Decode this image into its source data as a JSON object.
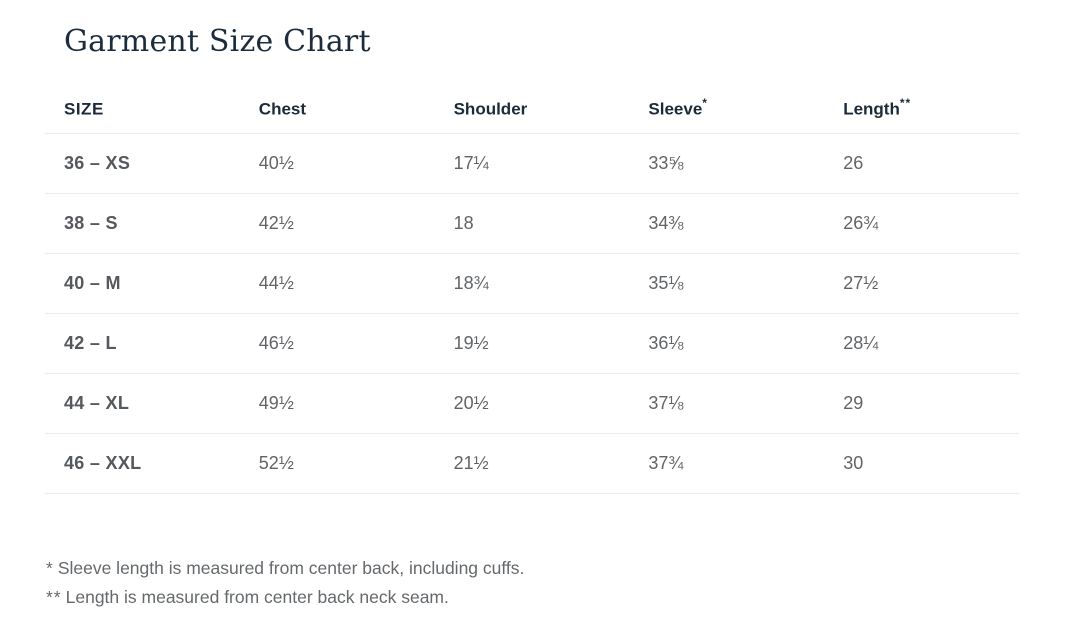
{
  "page": {
    "title": "Garment Size Chart",
    "background": "#ffffff"
  },
  "colors": {
    "title_text": "#1d2c3c",
    "header_text": "#1c2a39",
    "size_cell_text": "#55585c",
    "data_cell_text": "#616467",
    "footnote_text": "#66696c",
    "divider": "#ececec"
  },
  "size_chart": {
    "columns": [
      {
        "label": "SIZE",
        "marker": ""
      },
      {
        "label": "Chest",
        "marker": ""
      },
      {
        "label": "Shoulder",
        "marker": ""
      },
      {
        "label": "Sleeve",
        "marker": "*"
      },
      {
        "label": "Length",
        "marker": "**"
      }
    ],
    "rows": [
      {
        "size": "36 – XS",
        "chest": "40½",
        "shoulder": "17¼",
        "sleeve": "33⅝",
        "length": "26"
      },
      {
        "size": "38 – S",
        "chest": "42½",
        "shoulder": "18",
        "sleeve": "34⅜",
        "length": "26¾"
      },
      {
        "size": "40 – M",
        "chest": "44½",
        "shoulder": "18¾",
        "sleeve": "35⅛",
        "length": "27½"
      },
      {
        "size": "42 – L",
        "chest": "46½",
        "shoulder": "19½",
        "sleeve": "36⅛",
        "length": "28¼"
      },
      {
        "size": "44 – XL",
        "chest": "49½",
        "shoulder": "20½",
        "sleeve": "37⅛",
        "length": "29"
      },
      {
        "size": "46 – XXL",
        "chest": "52½",
        "shoulder": "21½",
        "sleeve": "37¾",
        "length": "30"
      }
    ]
  },
  "footnotes": [
    {
      "marker": "*",
      "text": "Sleeve length is measured from center back, including cuffs."
    },
    {
      "marker": "**",
      "text": "Length is measured from center back neck seam."
    }
  ],
  "chart_data": {
    "type": "table",
    "title": "Garment Size Chart",
    "columns": [
      "SIZE",
      "Chest",
      "Shoulder",
      "Sleeve*",
      "Length**"
    ],
    "rows": [
      [
        "36 – XS",
        "40½",
        "17¼",
        "33⅝",
        "26"
      ],
      [
        "38 – S",
        "42½",
        "18",
        "34⅜",
        "26¾"
      ],
      [
        "40 – M",
        "44½",
        "18¾",
        "35⅛",
        "27½"
      ],
      [
        "42 – L",
        "46½",
        "19½",
        "36⅛",
        "28¼"
      ],
      [
        "44 – XL",
        "49½",
        "20½",
        "37⅛",
        "29"
      ],
      [
        "46 – XXL",
        "52½",
        "21½",
        "37¾",
        "30"
      ]
    ],
    "notes": [
      "* Sleeve length is measured from center back, including cuffs.",
      "** Length is measured from center back neck seam."
    ]
  }
}
